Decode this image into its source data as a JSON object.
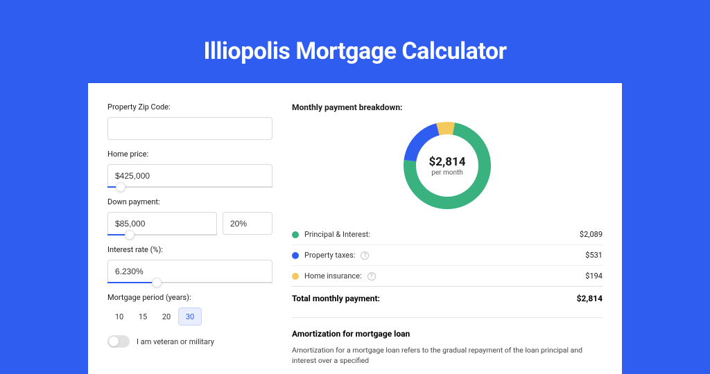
{
  "page": {
    "title": "Illiopolis Mortgage Calculator",
    "outer_bg": "#2f5df0",
    "inner_bar_bg": "#2449c2",
    "card_bg": "#ffffff"
  },
  "form": {
    "zip": {
      "label": "Property Zip Code:",
      "value": ""
    },
    "home_price": {
      "label": "Home price:",
      "value": "$425,000",
      "slider_pct": 8
    },
    "down_payment": {
      "label": "Down payment:",
      "value": "$85,000",
      "pct_value": "20%",
      "slider_pct": 20
    },
    "interest_rate": {
      "label": "Interest rate (%):",
      "value": "6.230%",
      "slider_pct": 30
    },
    "period": {
      "label": "Mortgage period (years):",
      "options": [
        "10",
        "15",
        "20",
        "30"
      ],
      "selected_index": 3
    },
    "veteran": {
      "label": "I am veteran or military",
      "on": false
    }
  },
  "breakdown": {
    "header": "Monthly payment breakdown:",
    "chart": {
      "type": "donut",
      "center_value": "$2,814",
      "center_sub": "per month",
      "segments": [
        {
          "label": "Principal & Interest",
          "value": 2089,
          "amount": "$2,089",
          "color": "#39b27f",
          "pct": 74.2
        },
        {
          "label": "Property taxes",
          "value": 531,
          "amount": "$531",
          "color": "#2f5df0",
          "pct": 18.9,
          "info": true
        },
        {
          "label": "Home insurance",
          "value": 194,
          "amount": "$194",
          "color": "#f4c95d",
          "pct": 6.9,
          "info": true
        }
      ],
      "ring_thickness": 18,
      "diameter": 126
    },
    "legend_labels": {
      "principal": "Principal & Interest:",
      "taxes": "Property taxes:",
      "insurance": "Home insurance:"
    },
    "total": {
      "label": "Total monthly payment:",
      "amount": "$2,814"
    }
  },
  "amortization": {
    "title": "Amortization for mortgage loan",
    "text": "Amortization for a mortgage loan refers to the gradual repayment of the loan principal and interest over a specified"
  }
}
